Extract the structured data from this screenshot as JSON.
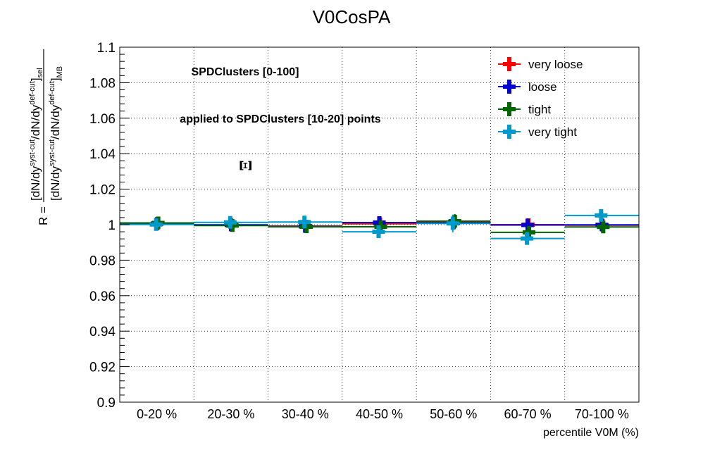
{
  "chart_data": {
    "type": "scatter",
    "title": "V0CosPA",
    "xlabel": "percentile V0M (%)",
    "ylabel_parts": {
      "r": "R =",
      "num_a": "[dN/dy",
      "num_sup1": "syst-cut",
      "num_b": "/dN/dy",
      "num_sup2": "def-cut",
      "num_c": "]",
      "num_sub": "sel",
      "den_a": "[dN/dy",
      "den_sup1": "syst-cut",
      "den_b": "/dN/dy",
      "den_sup2": "def-cut",
      "den_c": "]",
      "den_sub": "MB"
    },
    "categories": [
      "0-20 %",
      "20-30 %",
      "30-40 %",
      "40-50 %",
      "50-60 %",
      "60-70 %",
      "70-100 %"
    ],
    "ylim": [
      0.9,
      1.1
    ],
    "yticks": [
      "0.9",
      "0.92",
      "0.94",
      "0.96",
      "0.98",
      "1",
      "1.02",
      "1.04",
      "1.06",
      "1.08",
      "1.1"
    ],
    "grid": true,
    "legend_position": "top-right",
    "annotations": {
      "line1": "SPDClusters [0-100]",
      "line2": "applied to SPDClusters [10-20] points",
      "particle": "Ξ"
    },
    "series": [
      {
        "name": "very loose",
        "color": "#ff0000",
        "values": [
          1.0008,
          0.9997,
          0.9992,
          1.0005,
          1.0015,
          1.0,
          0.9997
        ],
        "errors": [
          0.0015,
          0.0015,
          0.0015,
          0.0015,
          0.002,
          0.0015,
          0.001
        ]
      },
      {
        "name": "loose",
        "color": "#0000cc",
        "values": [
          1.0005,
          0.9999,
          0.999,
          1.0012,
          1.001,
          0.9998,
          0.9999
        ],
        "errors": [
          0.0015,
          0.0015,
          0.0015,
          0.002,
          0.002,
          0.002,
          0.0012
        ]
      },
      {
        "name": "tight",
        "color": "#006600",
        "values": [
          1.001,
          0.9995,
          0.9988,
          0.9988,
          1.002,
          0.9957,
          0.9987
        ],
        "errors": [
          0.003,
          0.0025,
          0.003,
          0.0025,
          0.004,
          0.0025,
          0.0025
        ]
      },
      {
        "name": "very tight",
        "color": "#0099cc",
        "values": [
          1.0001,
          1.0013,
          1.0015,
          0.996,
          1.0007,
          0.9922,
          1.0052
        ],
        "errors": [
          0.003,
          0.003,
          0.003,
          0.0035,
          0.005,
          0.003,
          0.003
        ]
      }
    ]
  }
}
